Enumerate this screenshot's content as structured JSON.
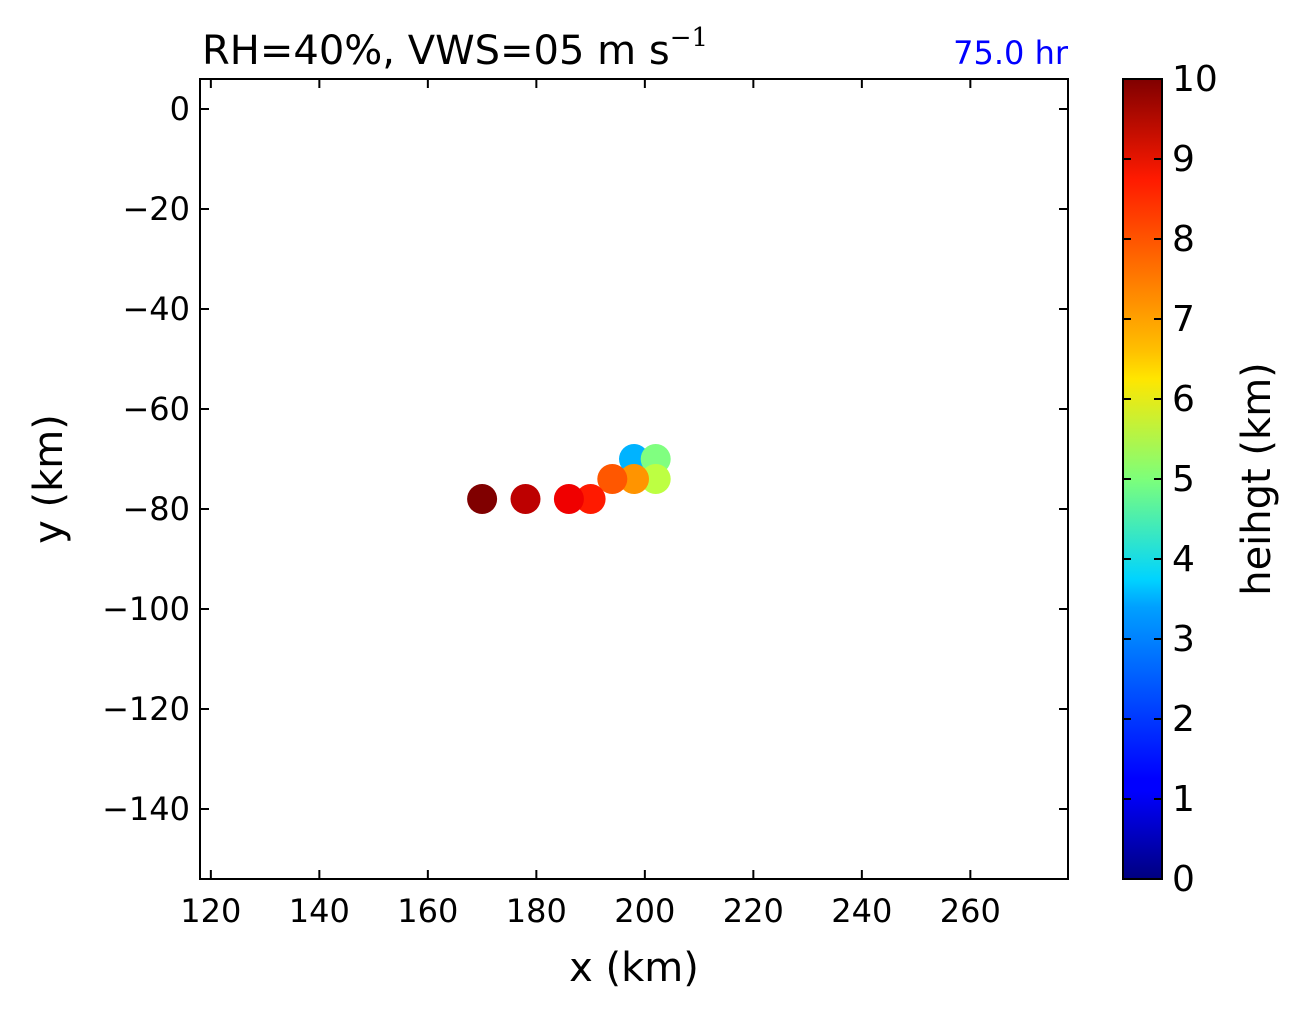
{
  "chart_data": {
    "type": "scatter",
    "title": {
      "main": "RH=40%, VWS=05 m s",
      "superscript": "−1"
    },
    "time_label": "75.0 hr",
    "time_label_color": "#0000ff",
    "xlabel": "x (km)",
    "ylabel": "y (km)",
    "xlim": [
      118,
      278
    ],
    "ylim": [
      -154,
      6
    ],
    "xticks": [
      120,
      140,
      160,
      180,
      200,
      220,
      240,
      260
    ],
    "xtick_labels": [
      "120",
      "140",
      "160",
      "180",
      "200",
      "220",
      "240",
      "260"
    ],
    "yticks": [
      0,
      -20,
      -40,
      -60,
      -80,
      -100,
      -120,
      -140
    ],
    "ytick_labels": [
      "0",
      "−20",
      "−40",
      "−60",
      "−80",
      "−100",
      "−120",
      "−140"
    ],
    "colormap": "jet",
    "colorbar": {
      "label": "heihgt (km)",
      "min": 0,
      "max": 10,
      "ticks": [
        0,
        1,
        2,
        3,
        4,
        5,
        6,
        7,
        8,
        9,
        10
      ],
      "tick_labels": [
        "0",
        "1",
        "2",
        "3",
        "4",
        "5",
        "6",
        "7",
        "8",
        "9",
        "10"
      ]
    },
    "points": [
      {
        "x": 198,
        "y": -70,
        "height": 3.0
      },
      {
        "x": 202,
        "y": -70,
        "height": 5.0
      },
      {
        "x": 202,
        "y": -74,
        "height": 5.6
      },
      {
        "x": 198,
        "y": -74,
        "height": 7.3
      },
      {
        "x": 194,
        "y": -74,
        "height": 7.9
      },
      {
        "x": 190,
        "y": -78,
        "height": 8.5
      },
      {
        "x": 186,
        "y": -78,
        "height": 8.9
      },
      {
        "x": 178,
        "y": -78,
        "height": 9.4
      },
      {
        "x": 170,
        "y": -78,
        "height": 10.0
      }
    ]
  }
}
